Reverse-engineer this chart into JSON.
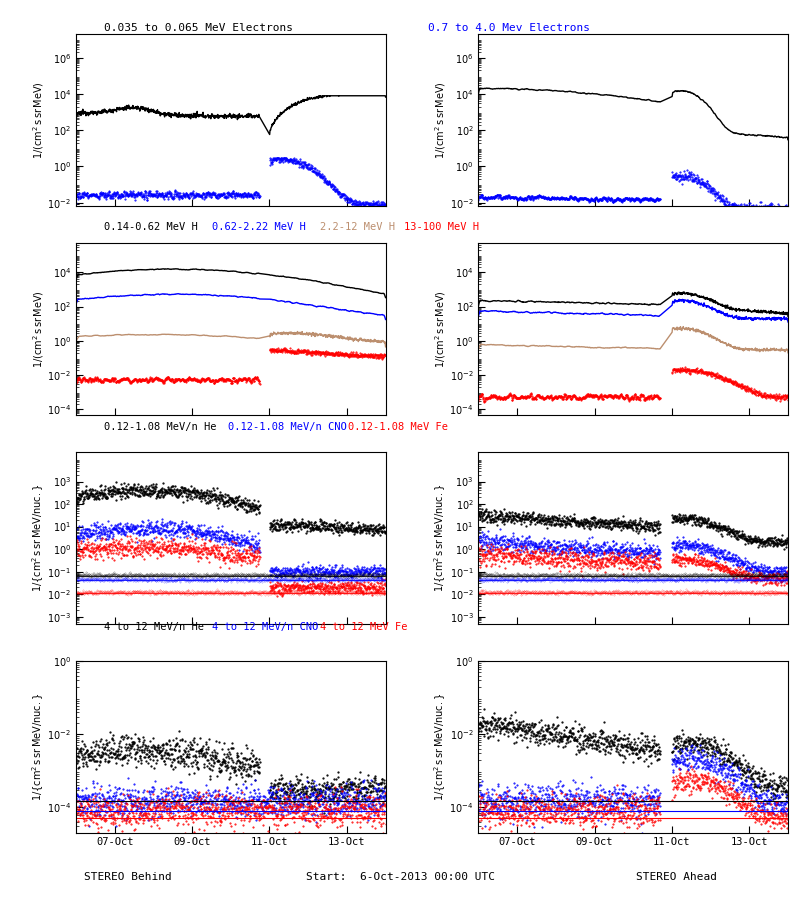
{
  "title_row1_left_black": "0.035 to 0.065 MeV Electrons",
  "title_row1_right_blue": "0.7 to 4.0 Mev Electrons",
  "title_row2_black": "0.14-0.62 MeV H",
  "title_row2_blue": "0.62-2.22 MeV H",
  "title_row2_tan": "2.2-12 MeV H",
  "title_row2_red": "13-100 MeV H",
  "title_row3_black": "0.12-1.08 MeV/n He",
  "title_row3_blue": "0.12-1.08 MeV/n CNO",
  "title_row3_red": "0.12-1.08 MeV Fe",
  "title_row4_black": "4 to 12 MeV/n He",
  "title_row4_blue": "4 to 12 MeV/n CNO",
  "title_row4_red": "4 to 12 MeV Fe",
  "xlabel_left": "STEREO Behind",
  "xlabel_center": "Start:  6-Oct-2013 00:00 UTC",
  "xlabel_right": "STEREO Ahead",
  "xtick_labels": [
    "07-Oct",
    "09-Oct",
    "11-Oct",
    "13-Oct"
  ],
  "tan_color": "#bc8f6f",
  "background_color": "#ffffff"
}
